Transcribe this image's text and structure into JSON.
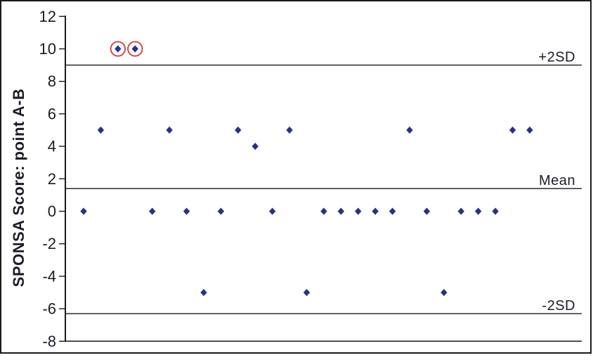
{
  "figure": {
    "background": "#ffffff",
    "border_color": "#1a1a1a"
  },
  "chart_data": {
    "type": "scatter",
    "title": "",
    "xlabel": "",
    "ylabel": "SPONSA Score: point A-B",
    "ylim": [
      -8,
      12
    ],
    "yticks": [
      12,
      10,
      8,
      6,
      4,
      2,
      0,
      -2,
      -4,
      -6,
      -8
    ],
    "grid": false,
    "legend": false,
    "marker": "diamond",
    "x": [
      1,
      2,
      3,
      4,
      5,
      6,
      7,
      8,
      9,
      10,
      11,
      12,
      13,
      14,
      15,
      16,
      17,
      18,
      19,
      20,
      21,
      22,
      23,
      24,
      25,
      26,
      27
    ],
    "y": [
      0,
      5,
      10,
      10,
      0,
      5,
      0,
      -5,
      0,
      5,
      4,
      0,
      5,
      -5,
      0,
      0,
      0,
      0,
      0,
      5,
      0,
      -5,
      0,
      0,
      0,
      5,
      5
    ],
    "circled_x": [
      3,
      4
    ],
    "reference_lines": [
      {
        "label": "+2SD",
        "value": 9.0
      },
      {
        "label": "Mean",
        "value": 1.4
      },
      {
        "label": "-2SD",
        "value": -6.3
      }
    ],
    "colors": {
      "marker": "#2a3184",
      "outlier_circle": "#d93a3a",
      "axis": "#1a1a1a",
      "text": "#1c1c28"
    }
  }
}
